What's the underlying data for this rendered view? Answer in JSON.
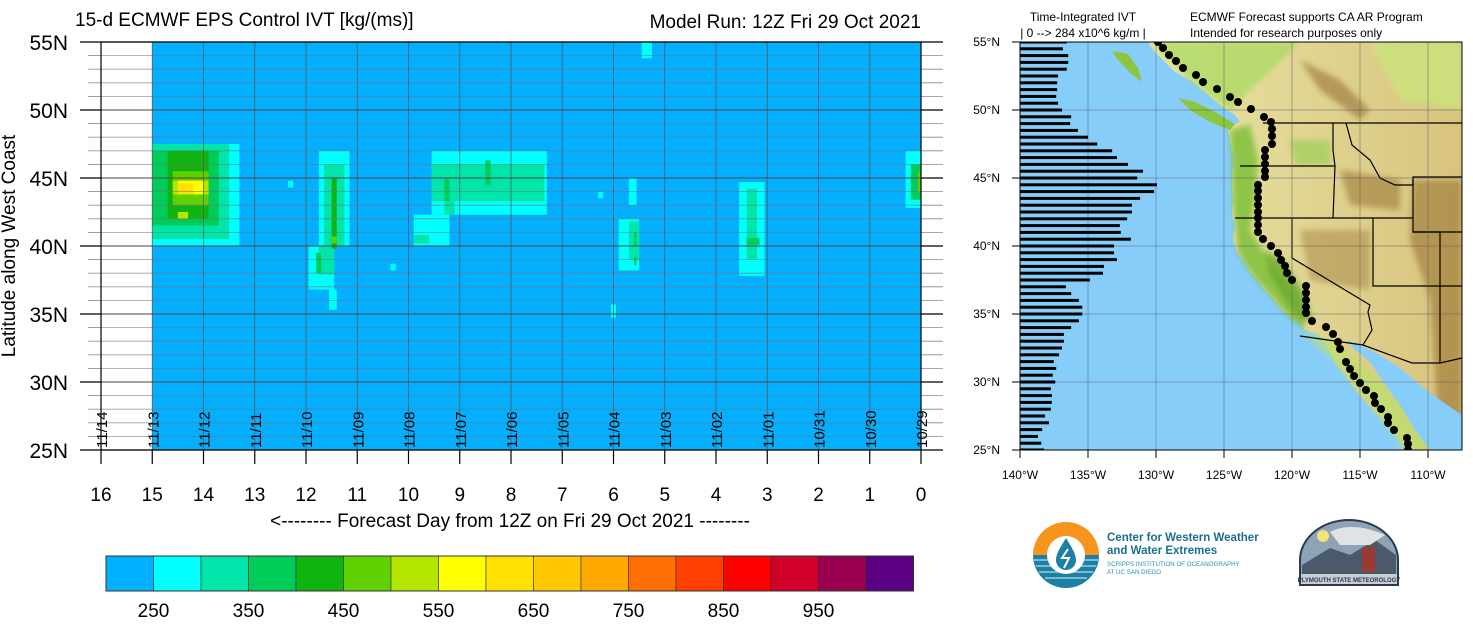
{
  "left_plot": {
    "title": "15-d ECMWF EPS Control IVT [kg/(ms)]",
    "model_run": "Model Run: 12Z Fri 29 Oct 2021",
    "y_axis_title": "Latitude along West Coast",
    "x_axis_title": "<-------- Forecast Day from 12Z on Fri 29 Oct 2021 --------",
    "y_ticks": [
      "55N",
      "50N",
      "45N",
      "40N",
      "35N",
      "30N",
      "25N"
    ],
    "x_ticks": [
      "16",
      "15",
      "14",
      "13",
      "12",
      "11",
      "10",
      "9",
      "8",
      "7",
      "6",
      "5",
      "4",
      "3",
      "2",
      "1",
      "0"
    ],
    "date_labels": [
      "11/14",
      "11/13",
      "11/12",
      "11/11",
      "11/10",
      "11/09",
      "11/08",
      "11/07",
      "11/06",
      "11/05",
      "11/04",
      "11/03",
      "11/02",
      "11/01",
      "10/31",
      "10/30",
      "10/29"
    ]
  },
  "colorbar": {
    "labels": [
      "250",
      "350",
      "450",
      "550",
      "650",
      "750",
      "850",
      "950"
    ],
    "colors": [
      "#00b0ff",
      "#00ffff",
      "#00e6aa",
      "#00cc5a",
      "#10b410",
      "#5fd000",
      "#b4e600",
      "#ffff00",
      "#ffe000",
      "#ffc800",
      "#ffa800",
      "#ff6e00",
      "#ff4000",
      "#ff0000",
      "#d0002a",
      "#9a0050",
      "#5a0080"
    ]
  },
  "chart_data": [
    {
      "type": "heatmap",
      "title": "15-d ECMWF EPS Control IVT [kg/(ms)]",
      "xlabel": "Forecast Day from 12Z on Fri 29 Oct 2021",
      "ylabel": "Latitude along West Coast",
      "xlim": [
        16,
        0
      ],
      "ylim": [
        25,
        55
      ],
      "data_start_day": 15,
      "background_value": 225,
      "levels": [
        200,
        250,
        300,
        350,
        400,
        450,
        500,
        550,
        600,
        650,
        700,
        750,
        800,
        850,
        900,
        950,
        1000
      ],
      "cells_day_lat_value": [
        [
          13.3,
          15,
          40,
          47.5,
          275
        ],
        [
          13.5,
          15,
          40.5,
          47.5,
          325
        ],
        [
          13.7,
          15,
          41.5,
          47,
          375
        ],
        [
          13.9,
          14.7,
          42,
          47,
          425
        ],
        [
          13.9,
          14.6,
          43,
          45.5,
          475
        ],
        [
          13.9,
          14.6,
          43.8,
          44.8,
          525
        ],
        [
          14.0,
          14.5,
          43.8,
          44.8,
          575
        ],
        [
          14.2,
          14.5,
          43.8,
          44.6,
          625
        ],
        [
          14.3,
          14.5,
          42,
          42.5,
          525
        ],
        [
          11.15,
          11.75,
          40,
          47,
          275
        ],
        [
          11.45,
          11.95,
          36.8,
          40,
          275
        ],
        [
          11.4,
          11.55,
          35.3,
          36.8,
          275
        ],
        [
          11.25,
          11.65,
          40,
          46,
          325
        ],
        [
          11.45,
          11.75,
          37.9,
          40,
          325
        ],
        [
          11.4,
          11.5,
          39.8,
          45,
          425
        ],
        [
          11.4,
          11.5,
          40.2,
          40.7,
          475
        ],
        [
          11.7,
          11.8,
          38,
          39.5,
          375
        ],
        [
          7.3,
          9.55,
          42.3,
          47,
          275
        ],
        [
          9.2,
          9.9,
          40,
          42.3,
          275
        ],
        [
          12.25,
          12.35,
          44.3,
          44.8,
          275
        ],
        [
          10.25,
          10.35,
          38.2,
          38.7,
          275
        ],
        [
          6.2,
          6.3,
          43.5,
          44,
          275
        ],
        [
          7.35,
          9.55,
          43.3,
          46,
          325
        ],
        [
          9.1,
          9.3,
          42.3,
          43.3,
          325
        ],
        [
          9.6,
          9.9,
          40.2,
          40.8,
          325
        ],
        [
          9.2,
          9.3,
          43.3,
          44.9,
          375
        ],
        [
          8.4,
          8.5,
          44.5,
          46.3,
          375
        ],
        [
          5.5,
          5.9,
          38.2,
          42,
          275
        ],
        [
          5.55,
          5.7,
          43,
          45,
          275
        ],
        [
          5.5,
          5.7,
          39,
          41.8,
          325
        ],
        [
          5.55,
          5.6,
          40,
          41,
          375
        ],
        [
          5.55,
          5.6,
          38.6,
          39.2,
          375
        ],
        [
          5.25,
          5.45,
          53.8,
          55,
          275
        ],
        [
          5.95,
          6.05,
          34.7,
          35.7,
          275
        ],
        [
          3.05,
          3.55,
          37.8,
          44.7,
          275
        ],
        [
          3.2,
          3.4,
          39,
          44.2,
          325
        ],
        [
          3.15,
          3.4,
          40.1,
          40.6,
          375
        ],
        [
          0,
          0.3,
          42.8,
          47,
          275
        ],
        [
          0,
          0.2,
          43.4,
          46,
          375
        ],
        [
          0,
          0.06,
          44,
          45.5,
          475
        ]
      ]
    },
    {
      "type": "bar",
      "title": "Time-Integrated IVT",
      "subtitle": "| 0 --> 284 x10^6 kg/m   |",
      "orientation": "horizontal",
      "xlim": [
        0,
        284
      ],
      "lat_start": 55,
      "lat_step": -0.5,
      "values": [
        97,
        89,
        100,
        100,
        97,
        79,
        77,
        77,
        75,
        79,
        87,
        106,
        104,
        120,
        141,
        160,
        191,
        201,
        224,
        255,
        243,
        284,
        278,
        249,
        232,
        232,
        222,
        207,
        209,
        230,
        195,
        195,
        201,
        174,
        172,
        145,
        95,
        106,
        122,
        129,
        129,
        122,
        106,
        91,
        91,
        87,
        81,
        70,
        75,
        68,
        73,
        64,
        66,
        66,
        64,
        52,
        60,
        46,
        37,
        44,
        50
      ]
    }
  ],
  "map": {
    "header_left_1": "Time-Integrated IVT",
    "header_left_2": "| 0 --> 284 x10^6 kg/m   |",
    "header_right_1": "ECMWF Forecast supports CA AR Program",
    "header_right_2": "Intended for research purposes only",
    "lat_labels": [
      "55°N",
      "50°N",
      "45°N",
      "40°N",
      "35°N",
      "30°N",
      "25°N"
    ],
    "lon_labels": [
      "140°W",
      "135°W",
      "130°W",
      "125°W",
      "120°W",
      "115°W",
      "110°W"
    ],
    "ocean_color": "#87cdfa"
  },
  "logos": {
    "cw3e_line1": "Center for Western Weather",
    "cw3e_line2": "and Water Extremes",
    "cw3e_line3": "SCRIPPS INSTITUTION OF OCEANOGRAPHY",
    "cw3e_line4": "AT UC SAN DIEGO",
    "plymouth": "PLYMOUTH STATE METEOROLOGY"
  }
}
